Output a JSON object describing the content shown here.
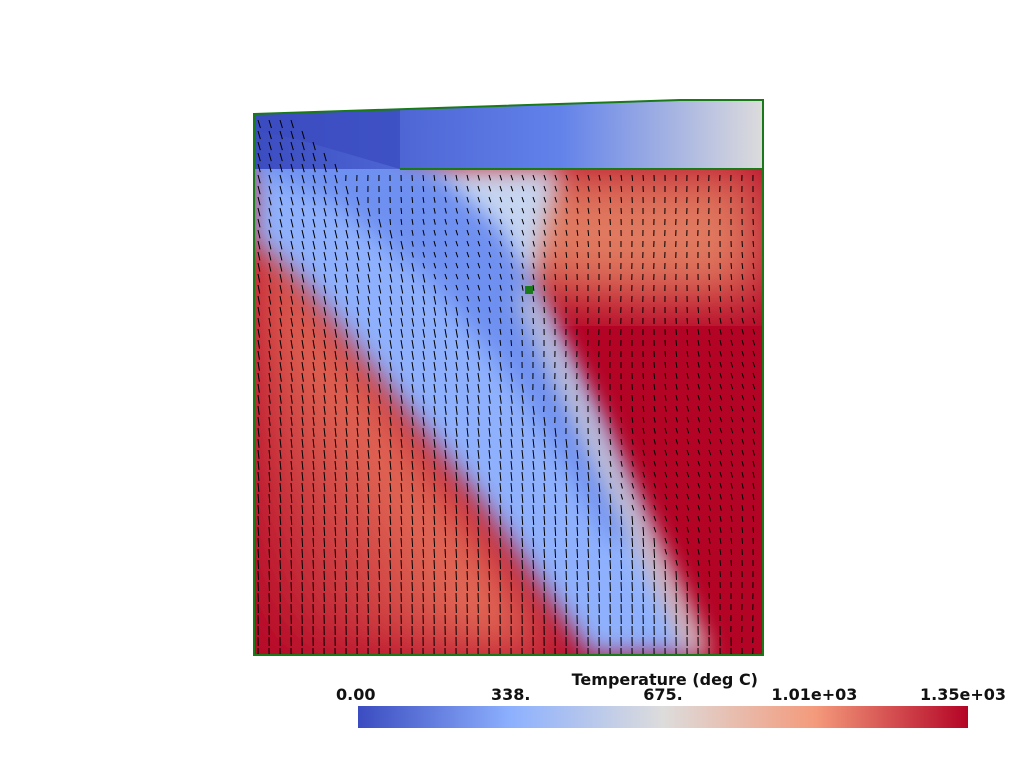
{
  "colorbar": {
    "title": "Temperature (deg C)",
    "range": [
      0,
      1350
    ],
    "ticks": [
      {
        "value": 0,
        "label": "0.00"
      },
      {
        "value": 338,
        "label": "338."
      },
      {
        "value": 675,
        "label": "675."
      },
      {
        "value": 1010,
        "label": "1.01e+03"
      },
      {
        "value": 1350,
        "label": "1.35e+03"
      }
    ]
  }
}
